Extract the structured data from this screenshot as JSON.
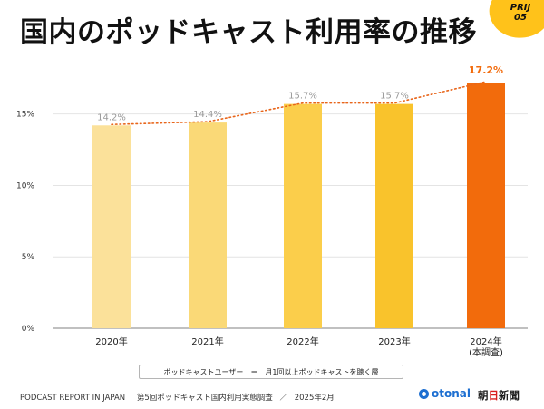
{
  "title": "国内のポッドキャスト利用率の推移",
  "badge": {
    "line1": "PRIJ",
    "line2": "05"
  },
  "chart_data": {
    "type": "bar",
    "title": "国内のポッドキャスト利用率の推移",
    "categories": [
      "2020年",
      "2021年",
      "2022年",
      "2023年",
      "2024年"
    ],
    "category_sublabels": [
      "",
      "",
      "",
      "",
      "(本調査)"
    ],
    "values": [
      14.2,
      14.4,
      15.7,
      15.7,
      17.2
    ],
    "value_labels": [
      "14.2%",
      "14.4%",
      "15.7%",
      "15.7%",
      "17.2%"
    ],
    "bar_colors": [
      "#fbe19a",
      "#fad977",
      "#fbce4b",
      "#f9c32c",
      "#f26b0c"
    ],
    "value_label_colors": [
      "#9a9a9a",
      "#9a9a9a",
      "#9a9a9a",
      "#9a9a9a",
      "#f26b0c"
    ],
    "highlight_index": 4,
    "ylim": [
      0,
      17.2
    ],
    "yticks": [
      0,
      5,
      10,
      15
    ],
    "ytick_labels": [
      "0%",
      "5%",
      "10%",
      "15%"
    ],
    "trend_line": {
      "style": "dotted",
      "color": "#e8651a"
    },
    "grid": true,
    "xlabel": "",
    "ylabel": "",
    "legend": "bottom"
  },
  "legend": {
    "term": "ポッドキャストユーザー",
    "sep": "＝",
    "definition": "月1回以上ポッドキャストを聴く層"
  },
  "footer": {
    "report": "PODCAST REPORT IN JAPAN",
    "edition": "第5回ポッドキャスト国内利用実態調査",
    "slash": "／",
    "date": "2025年2月"
  },
  "logos": {
    "otonal": "otonal",
    "asahi_a": "朝",
    "asahi_b": "日",
    "asahi_c": "新聞"
  }
}
